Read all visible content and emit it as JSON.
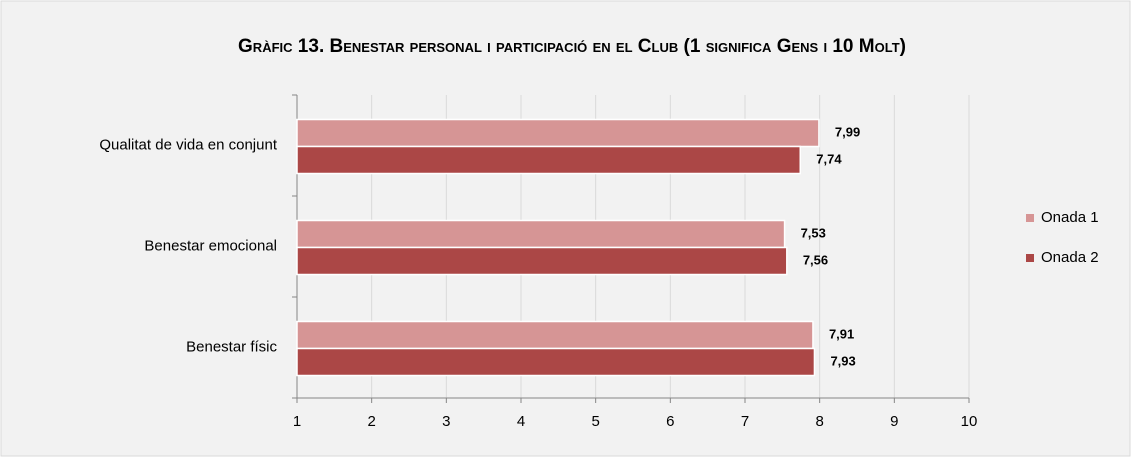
{
  "chart_data": {
    "type": "hbar",
    "title": "Gràfic 13. Benestar personal i participació en el Club (1 significa Gens i 10 Molt)",
    "categories": [
      "Qualitat de vida en conjunt",
      "Benestar emocional",
      "Benestar físic"
    ],
    "series": [
      {
        "name": "Onada 1",
        "color": "#d69595",
        "values": [
          7.99,
          7.53,
          7.91
        ],
        "value_labels": [
          "7,99",
          "7,53",
          "7,91"
        ]
      },
      {
        "name": "Onada 2",
        "color": "#ab4746",
        "values": [
          7.74,
          7.56,
          7.93
        ],
        "value_labels": [
          "7,74",
          "7,56",
          "7,93"
        ]
      }
    ],
    "xlim": [
      1,
      10
    ],
    "xticks": [
      1,
      2,
      3,
      4,
      5,
      6,
      7,
      8,
      9,
      10
    ],
    "grid": true,
    "legend": "right"
  }
}
